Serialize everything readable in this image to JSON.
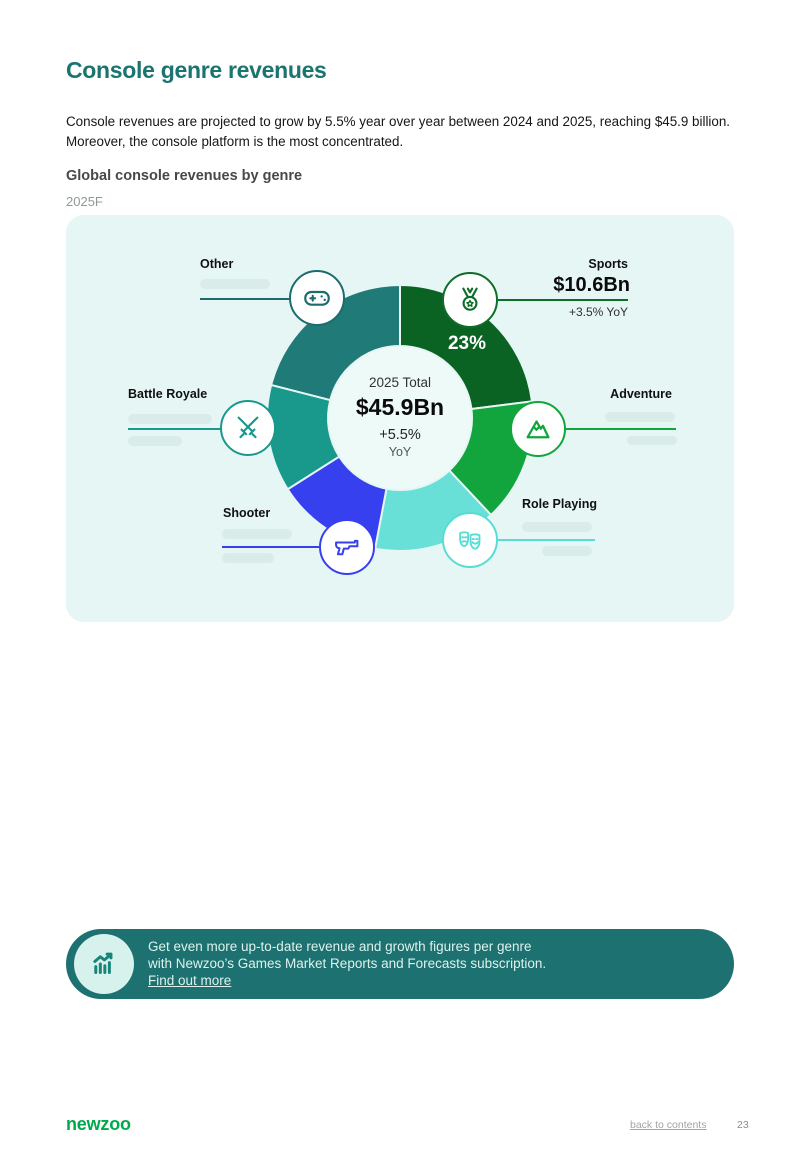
{
  "page": {
    "title": "Console genre revenues",
    "intro": "Console revenues are projected to grow by 5.5% year over year between 2024 and 2025, reaching $45.9 billion. Moreover, the console platform is the most concentrated.",
    "chart_heading": "Global console revenues by genre",
    "period": "2025F"
  },
  "chart_data": {
    "type": "pie",
    "donut": true,
    "title": "Global console revenues by genre",
    "subtitle": "2025F",
    "legend_position": "callouts-around-donut",
    "start_angle_deg": 0,
    "direction": "clockwise",
    "center": {
      "label": "2025 Total",
      "value": "$45.9Bn",
      "growth": "+5.5%",
      "growth_unit": "YoY"
    },
    "series": [
      {
        "name": "Sports",
        "share_pct": 23,
        "pct_label": "23%",
        "value": "$10.6Bn",
        "growth": "+3.5% YoY",
        "color": "#0a6322",
        "callout_color": "#0f6d2a",
        "icon": "medal-icon"
      },
      {
        "name": "Adventure",
        "share_pct": 15,
        "color": "#12a53e",
        "callout_color": "#12a53e",
        "icon": "mountain-icon"
      },
      {
        "name": "Role Playing",
        "share_pct": 15,
        "color": "#68dfd7",
        "callout_color": "#57ddd4",
        "icon": "theater-masks-icon"
      },
      {
        "name": "Shooter",
        "share_pct": 13,
        "color": "#3640ef",
        "callout_color": "#3640ef",
        "icon": "pistol-icon"
      },
      {
        "name": "Battle Royale",
        "share_pct": 13,
        "color": "#18998b",
        "callout_color": "#18998b",
        "icon": "crossed-swords-icon"
      },
      {
        "name": "Other",
        "share_pct": 21,
        "color": "#207a78",
        "callout_color": "#1d6b6d",
        "icon": "gamepad-icon"
      }
    ]
  },
  "banner": {
    "icon": "bar-chart-icon",
    "line1": "Get even more up-to-date revenue and growth figures per genre",
    "line2": "with Newzoo’s Games Market Reports and Forecasts subscription.",
    "link_label": "Find out more"
  },
  "footer": {
    "logo": "newzoo",
    "back_link": "back to contents",
    "page_number": "23"
  },
  "colors": {
    "title_teal": "#1a746f",
    "panel_bg": "#e5f6f4",
    "donut_center_bg": "#edfaf8",
    "pill_bg": "#d9ece9",
    "banner_bg": "#1d7170",
    "banner_circle_bg": "#d7f2ec",
    "logo_green": "#00a94c"
  }
}
